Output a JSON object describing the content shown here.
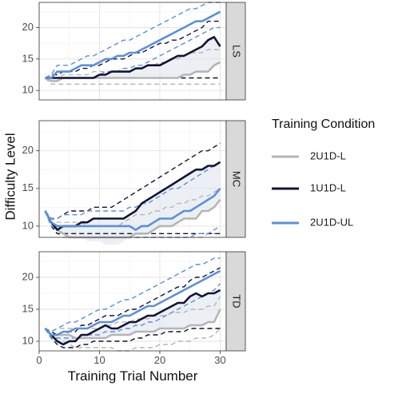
{
  "chart_data": {
    "type": "line",
    "xlabel": "Training Trial Number",
    "ylabel": "Difficulty Level",
    "xlim": [
      0,
      31
    ],
    "ylim": [
      8.5,
      24
    ],
    "x_ticks": [
      0,
      10,
      20,
      30
    ],
    "y_ticks": [
      10,
      15,
      20
    ],
    "grid": true,
    "legend": {
      "title": "Training Condition",
      "position": "right",
      "entries": [
        "2U1D-L",
        "1U1D-L",
        "2U1D-UL"
      ]
    },
    "colors": {
      "2U1D-L": "#b5b5b5",
      "1U1D-L": "#111436",
      "2U1D-UL": "#5b8fdc",
      "strip_bg": "#d9d9d9",
      "ribbon": "#dce3ec"
    },
    "x": [
      1,
      2,
      3,
      4,
      5,
      6,
      7,
      8,
      9,
      10,
      11,
      12,
      13,
      14,
      15,
      16,
      17,
      18,
      19,
      20,
      21,
      22,
      23,
      24,
      25,
      26,
      27,
      28,
      29,
      30
    ],
    "panels": [
      {
        "strip": "LS",
        "series": [
          {
            "name": "2U1D-L",
            "mean": [
              12,
              11.5,
              11.5,
              12,
              12,
              12,
              12,
              12,
              12,
              12,
              12,
              12,
              12,
              12,
              12,
              12,
              12,
              12,
              12,
              12,
              12,
              12,
              12,
              12.5,
              12.5,
              13,
              13,
              13,
              14,
              14.5
            ],
            "upper": [
              12,
              12,
              12,
              12.5,
              12.5,
              12.5,
              12.5,
              12.5,
              13,
              13,
              13,
              13,
              13,
              13,
              13,
              13.5,
              13.5,
              14,
              14,
              14.5,
              14.5,
              15,
              15,
              15.5,
              16,
              16,
              16,
              16.5,
              16.5,
              16.5
            ],
            "lower": [
              12,
              11,
              11,
              11,
              11,
              11,
              11,
              11,
              11,
              11,
              11,
              11,
              11,
              11,
              11,
              11,
              11,
              11,
              11,
              11,
              11,
              11,
              11,
              11,
              11,
              11,
              11,
              11,
              11,
              11
            ]
          },
          {
            "name": "1U1D-L",
            "mean": [
              12,
              12,
              12,
              12,
              12,
              12,
              12,
              12,
              12,
              12.5,
              12.5,
              13,
              13,
              13,
              13,
              13.5,
              13.5,
              14,
              14,
              14,
              14.5,
              15,
              15.5,
              15.5,
              16,
              16.5,
              17,
              18,
              18.5,
              17
            ],
            "upper": [
              12,
              12.5,
              12.5,
              13,
              13,
              13,
              13.5,
              13.5,
              14,
              14,
              14.5,
              15,
              15,
              15,
              15.5,
              16,
              16,
              16.5,
              17,
              17.5,
              17.5,
              18,
              18,
              18.5,
              19,
              19.5,
              20,
              21,
              21,
              21
            ],
            "lower": [
              12,
              12,
              12,
              12,
              12,
              12,
              12,
              12,
              12,
              12,
              12,
              12,
              12,
              12,
              12,
              12,
              12,
              12,
              12,
              12,
              12,
              12,
              12,
              12,
              12,
              12,
              12,
              12,
              12,
              12
            ]
          },
          {
            "name": "2U1D-UL",
            "mean": [
              12,
              12,
              13,
              13,
              13,
              13.5,
              14,
              14,
              14,
              14.5,
              15,
              15,
              15.5,
              15.5,
              16,
              16,
              16.5,
              17,
              17.5,
              18,
              18.5,
              19,
              19.5,
              20,
              20.5,
              21,
              21,
              21.5,
              22,
              22.5
            ],
            "upper": [
              12,
              12.5,
              14,
              14,
              14,
              14.5,
              15,
              15.5,
              15.5,
              16,
              16.5,
              17,
              17.5,
              18,
              18,
              18.5,
              19,
              19.5,
              20,
              20.5,
              21,
              21.5,
              22,
              22.5,
              23,
              23,
              23.5,
              24,
              24,
              24
            ],
            "lower": [
              12,
              12,
              12,
              12,
              12,
              12,
              12,
              12,
              12,
              12.5,
              13,
              13,
              13,
              13.5,
              13.5,
              14,
              14,
              14.5,
              15,
              15.5,
              16,
              16.5,
              17,
              17.5,
              18,
              18.5,
              19,
              19.5,
              20,
              20
            ]
          }
        ]
      },
      {
        "strip": "MC",
        "series": [
          {
            "name": "2U1D-L",
            "mean": [
              12,
              10.5,
              9.5,
              9,
              8.5,
              8.5,
              8.5,
              8,
              8,
              8,
              7.5,
              7.5,
              7.5,
              8,
              8.5,
              9,
              9,
              9,
              9.5,
              10,
              10,
              10,
              10.5,
              11,
              11,
              11,
              12,
              12,
              12.5,
              13.5
            ],
            "upper": [
              12,
              11,
              10.5,
              10.5,
              10.5,
              10.5,
              10.5,
              10,
              10,
              10,
              10,
              10,
              10,
              10.5,
              11,
              11.5,
              11.5,
              11.5,
              12,
              12,
              12.5,
              12.5,
              13,
              13,
              13.5,
              13.5,
              14,
              14,
              14.5,
              15
            ],
            "lower": [
              12,
              10,
              9,
              8,
              7.5,
              7,
              7,
              7,
              6.5,
              6.5,
              6,
              6,
              6,
              6,
              6.5,
              7,
              7,
              7,
              7,
              7.5,
              7.5,
              7.5,
              8,
              8,
              8,
              8.5,
              8.5,
              9,
              9,
              9
            ]
          },
          {
            "name": "1U1D-L",
            "mean": [
              12,
              10.5,
              9.5,
              10,
              10,
              10,
              10.5,
              10.5,
              11,
              11,
              11,
              11,
              11,
              11,
              11.5,
              12,
              13,
              13.5,
              14,
              14.5,
              15,
              15.5,
              16,
              16.5,
              17,
              17.5,
              17.5,
              18,
              18,
              18.5
            ],
            "upper": [
              12,
              11,
              11,
              11.5,
              12,
              12,
              12,
              12,
              12.5,
              12.5,
              12.5,
              12.5,
              13,
              13.5,
              14,
              14.5,
              15,
              15.5,
              16,
              16.5,
              17,
              17.5,
              18,
              18.5,
              19,
              19.5,
              20,
              20,
              20.5,
              21
            ],
            "lower": [
              12,
              10,
              9,
              9,
              9,
              9,
              9,
              9,
              9,
              9,
              9,
              9,
              9,
              9,
              9,
              9,
              9,
              9,
              9,
              9,
              9,
              9,
              9,
              9,
              9,
              9,
              9,
              9,
              9,
              9
            ]
          },
          {
            "name": "2U1D-UL",
            "mean": [
              12,
              10.5,
              10,
              10,
              10,
              10,
              10,
              10,
              10,
              10,
              10,
              10,
              10,
              10,
              10,
              9.5,
              10,
              10,
              10.5,
              11,
              11,
              11,
              11.5,
              12,
              12,
              12.5,
              13,
              13.5,
              14,
              15
            ],
            "upper": [
              12,
              11,
              11,
              11.5,
              11.5,
              11.5,
              11.5,
              12,
              12,
              12,
              12,
              12,
              12,
              12,
              12.5,
              12.5,
              13,
              13,
              13.5,
              14,
              14.5,
              15,
              15,
              15.5,
              16,
              16.5,
              17,
              17.5,
              18,
              18.5
            ],
            "lower": [
              12,
              10,
              9.5,
              9,
              8.5,
              8.5,
              8.5,
              8.5,
              8.5,
              8,
              8,
              8,
              8,
              8,
              8,
              8,
              8,
              8,
              8,
              8,
              8,
              8,
              8.5,
              8.5,
              8.5,
              9,
              9,
              9,
              9.5,
              10
            ]
          }
        ]
      },
      {
        "strip": "TD",
        "series": [
          {
            "name": "2U1D-L",
            "mean": [
              12,
              11,
              11,
              11,
              11,
              10.5,
              10.5,
              10.5,
              10.5,
              10.5,
              10.5,
              11,
              11,
              11,
              11,
              11.5,
              11.5,
              11.5,
              11.5,
              12,
              12,
              12,
              12,
              12,
              12.5,
              12.5,
              12.5,
              13,
              13,
              15
            ],
            "upper": [
              12,
              11.5,
              12,
              12,
              12,
              12,
              12,
              12,
              12,
              12,
              12.5,
              12.5,
              13,
              13,
              13,
              13.5,
              13.5,
              13.5,
              14,
              14,
              14,
              14.5,
              14.5,
              14.5,
              15,
              15,
              15,
              15.5,
              15.5,
              17
            ],
            "lower": [
              12,
              10.5,
              10,
              10,
              9.5,
              9,
              9,
              9,
              9,
              9,
              9,
              9,
              8.5,
              8.5,
              8.5,
              9,
              9,
              9,
              9,
              9.5,
              9.5,
              9.5,
              10,
              10,
              10,
              10.5,
              10.5,
              10.5,
              11,
              12
            ]
          },
          {
            "name": "1U1D-L",
            "mean": [
              12,
              11,
              10,
              9.5,
              10,
              10,
              11,
              11,
              11.5,
              12,
              12.5,
              12,
              12,
              12.5,
              13,
              13,
              13.5,
              14,
              14,
              14.5,
              15,
              15.5,
              16,
              16,
              17,
              17.5,
              17,
              17.5,
              17.5,
              18
            ],
            "upper": [
              12,
              11.5,
              11,
              11,
              11.5,
              11.5,
              12.5,
              12.5,
              13,
              13.5,
              14,
              14,
              14,
              14.5,
              15,
              15,
              15.5,
              16,
              16.5,
              17,
              17.5,
              18,
              18.5,
              18.5,
              19.5,
              20,
              20,
              20.5,
              21,
              21.5
            ],
            "lower": [
              12,
              10.5,
              9.5,
              9,
              9,
              9,
              9.5,
              9.5,
              10,
              10,
              10,
              10,
              10,
              10,
              10,
              10.5,
              10.5,
              11,
              11,
              11,
              11.5,
              11.5,
              11.5,
              11.5,
              12,
              12,
              12,
              12,
              12,
              12
            ]
          },
          {
            "name": "2U1D-UL",
            "mean": [
              12,
              11,
              11,
              11.5,
              11.5,
              12,
              12,
              12,
              12.5,
              13,
              13,
              13,
              13.5,
              14,
              14,
              14.5,
              15,
              15.5,
              15.5,
              16,
              16.5,
              17,
              17.5,
              18,
              18.5,
              19,
              19.5,
              20,
              20.5,
              21
            ],
            "upper": [
              12,
              11.5,
              12,
              12.5,
              13,
              13,
              13.5,
              14,
              14.5,
              15,
              15,
              15.5,
              16,
              16.5,
              16.5,
              17,
              17.5,
              18,
              18.5,
              19,
              19.5,
              20,
              20.5,
              21,
              21.5,
              22,
              22,
              22.5,
              23,
              23
            ],
            "lower": [
              12,
              10.5,
              10.5,
              10.5,
              10.5,
              10.5,
              11,
              11,
              11,
              11,
              11.5,
              11.5,
              11.5,
              12,
              12,
              12.5,
              12.5,
              13,
              13,
              13.5,
              14,
              14.5,
              15,
              15.5,
              16,
              16.5,
              17,
              17.5,
              18,
              19
            ]
          }
        ]
      }
    ]
  }
}
